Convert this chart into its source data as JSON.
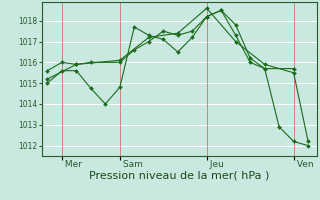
{
  "bg_color": "#c8e8e0",
  "grid_color": "#ffffff",
  "vline_color": "#d08080",
  "line_color": "#1a6b1a",
  "marker_color": "#1a6b1a",
  "xlabel": "Pression niveau de la mer( hPa )",
  "xlabel_fontsize": 8,
  "yticks": [
    1012,
    1013,
    1014,
    1015,
    1016,
    1017,
    1018
  ],
  "ylim": [
    1011.5,
    1018.9
  ],
  "xlim": [
    0.3,
    9.8
  ],
  "day_labels": [
    " Mer",
    " Sam",
    " Jeu",
    " Ven"
  ],
  "day_positions": [
    1.0,
    3.0,
    6.0,
    9.0
  ],
  "series": [
    {
      "x": [
        0.5,
        1.0,
        1.5,
        2.0,
        2.5,
        3.0,
        3.5,
        4.0,
        4.5,
        5.0,
        5.5,
        6.0,
        6.5,
        7.0,
        7.5,
        8.0,
        9.0
      ],
      "y": [
        1015.0,
        1015.6,
        1015.6,
        1014.75,
        1014.0,
        1014.8,
        1017.7,
        1017.3,
        1017.1,
        1016.5,
        1017.2,
        1018.2,
        1018.5,
        1017.3,
        1016.0,
        1015.7,
        1015.7
      ]
    },
    {
      "x": [
        0.5,
        1.0,
        1.5,
        2.0,
        3.0,
        3.5,
        4.0,
        4.5,
        5.0,
        5.5,
        6.0,
        6.5,
        7.0,
        7.5,
        8.0,
        8.5,
        9.0,
        9.5
      ],
      "y": [
        1015.6,
        1016.0,
        1015.9,
        1016.0,
        1016.0,
        1016.6,
        1017.0,
        1017.5,
        1017.3,
        1017.5,
        1018.2,
        1018.5,
        1017.8,
        1016.2,
        1015.7,
        1012.9,
        1012.2,
        1012.0
      ]
    },
    {
      "x": [
        0.5,
        1.5,
        3.0,
        4.0,
        5.0,
        6.0,
        7.0,
        8.0,
        9.0,
        9.5
      ],
      "y": [
        1015.2,
        1015.9,
        1016.1,
        1017.2,
        1017.4,
        1018.6,
        1017.0,
        1015.9,
        1015.5,
        1012.2
      ]
    }
  ]
}
